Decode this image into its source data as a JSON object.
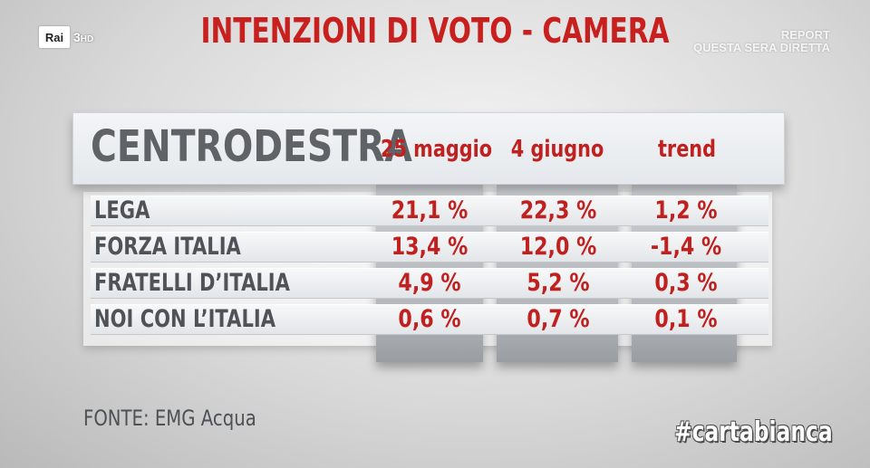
{
  "channel": {
    "logo_text": "Rai",
    "channel_number": "3",
    "channel_suffix": "HD"
  },
  "title": "INTENZIONI DI VOTO - CAMERA",
  "promo": {
    "line1": "REPORT",
    "line2": "QUESTA SERA DIRETTA"
  },
  "table": {
    "group_label": "CENTRODESTRA",
    "columns": [
      "25 maggio",
      "4 giugno",
      "trend"
    ],
    "rows": [
      {
        "party": "LEGA",
        "may25": "21,1 %",
        "jun4": "22,3 %",
        "trend": "1,2 %"
      },
      {
        "party": "FORZA ITALIA",
        "may25": "13,4 %",
        "jun4": "12,0 %",
        "trend": "-1,4 %"
      },
      {
        "party": "FRATELLI D’ITALIA",
        "may25": "4,9 %",
        "jun4": "5,2 %",
        "trend": "0,3 %"
      },
      {
        "party": "NOI CON L’ITALIA",
        "may25": "0,6 %",
        "jun4": "0,7 %",
        "trend": "0,1 %"
      }
    ]
  },
  "source": "FONTE: EMG Acqua",
  "hashtag": "#cartabianca",
  "colors": {
    "accent_red": "#c0201e",
    "label_gray": "#5f6368"
  }
}
